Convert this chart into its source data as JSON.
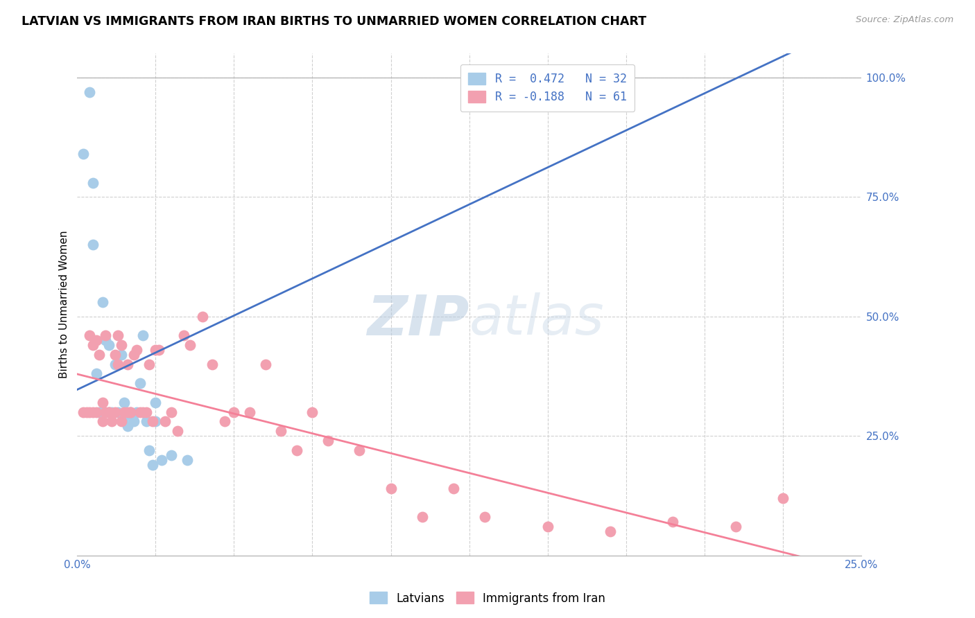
{
  "title": "LATVIAN VS IMMIGRANTS FROM IRAN BIRTHS TO UNMARRIED WOMEN CORRELATION CHART",
  "source": "Source: ZipAtlas.com",
  "ylabel": "Births to Unmarried Women",
  "y_tick_vals": [
    0.25,
    0.5,
    0.75,
    1.0
  ],
  "legend_latvians": "R =  0.472   N = 32",
  "legend_iran": "R = -0.188   N = 61",
  "legend_label_latvians": "Latvians",
  "legend_label_iran": "Immigrants from Iran",
  "color_latvians": "#A8CCE8",
  "color_iran": "#F2A0B0",
  "color_latvians_line": "#4472C4",
  "color_iran_line": "#F48098",
  "background_color": "#FFFFFF",
  "latvians_x": [
    0.002,
    0.004,
    0.005,
    0.005,
    0.006,
    0.007,
    0.008,
    0.009,
    0.01,
    0.01,
    0.011,
    0.012,
    0.013,
    0.014,
    0.015,
    0.015,
    0.016,
    0.017,
    0.018,
    0.019,
    0.02,
    0.021,
    0.022,
    0.023,
    0.024,
    0.025,
    0.025,
    0.027,
    0.03,
    0.035,
    0.13,
    0.17
  ],
  "latvians_y": [
    0.84,
    0.97,
    0.78,
    0.65,
    0.38,
    0.3,
    0.53,
    0.45,
    0.44,
    0.3,
    0.3,
    0.4,
    0.3,
    0.42,
    0.29,
    0.32,
    0.27,
    0.3,
    0.28,
    0.3,
    0.36,
    0.46,
    0.28,
    0.22,
    0.19,
    0.28,
    0.32,
    0.2,
    0.21,
    0.2,
    0.97,
    0.97
  ],
  "iran_x": [
    0.002,
    0.003,
    0.004,
    0.004,
    0.005,
    0.005,
    0.006,
    0.006,
    0.007,
    0.008,
    0.008,
    0.009,
    0.009,
    0.01,
    0.01,
    0.011,
    0.012,
    0.012,
    0.013,
    0.013,
    0.014,
    0.014,
    0.015,
    0.016,
    0.016,
    0.017,
    0.017,
    0.018,
    0.019,
    0.02,
    0.021,
    0.022,
    0.023,
    0.024,
    0.025,
    0.026,
    0.028,
    0.03,
    0.032,
    0.034,
    0.036,
    0.04,
    0.043,
    0.047,
    0.05,
    0.055,
    0.06,
    0.065,
    0.07,
    0.075,
    0.08,
    0.09,
    0.1,
    0.11,
    0.12,
    0.13,
    0.15,
    0.17,
    0.19,
    0.21,
    0.225
  ],
  "iran_y": [
    0.3,
    0.3,
    0.46,
    0.3,
    0.44,
    0.3,
    0.45,
    0.3,
    0.42,
    0.28,
    0.32,
    0.3,
    0.46,
    0.3,
    0.3,
    0.28,
    0.42,
    0.3,
    0.4,
    0.46,
    0.28,
    0.44,
    0.3,
    0.3,
    0.4,
    0.3,
    0.3,
    0.42,
    0.43,
    0.3,
    0.3,
    0.3,
    0.4,
    0.28,
    0.43,
    0.43,
    0.28,
    0.3,
    0.26,
    0.46,
    0.44,
    0.5,
    0.4,
    0.28,
    0.3,
    0.3,
    0.4,
    0.26,
    0.22,
    0.3,
    0.24,
    0.22,
    0.14,
    0.08,
    0.14,
    0.08,
    0.06,
    0.05,
    0.07,
    0.06,
    0.12
  ]
}
